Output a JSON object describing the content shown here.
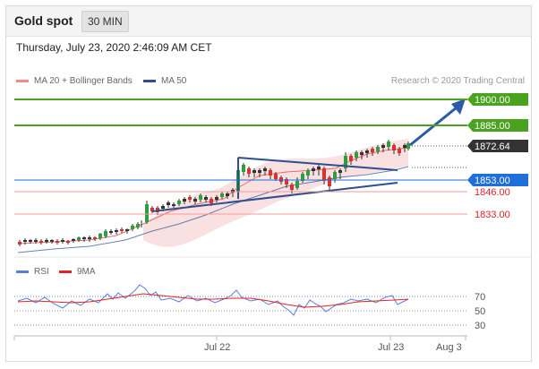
{
  "header": {
    "title": "Gold spot",
    "timeframe": "30 MIN"
  },
  "datetime": "Thursday, July 23, 2020 2:46:09 AM CET",
  "legend": {
    "ma20": {
      "label": "MA 20 + Bollinger Bands",
      "color": "#f28b8b"
    },
    "ma50": {
      "label": "MA 50",
      "color": "#2c4f8f"
    }
  },
  "credit": "Research © 2020 Trading Central",
  "levels": {
    "r2": {
      "label": "1900.00",
      "color": "#4aa31f"
    },
    "r1": {
      "label": "1885.00",
      "color": "#4aa31f"
    },
    "last": {
      "label": "1872.64",
      "color": "#333333"
    },
    "pivot": {
      "label": "1853.00",
      "color": "#1e6fd9"
    },
    "s1": {
      "label": "1846.00",
      "color": "#e02424"
    },
    "s2": {
      "label": "1833.00",
      "color": "#e02424"
    }
  },
  "rsi_legend": {
    "rsi": {
      "label": "RSI",
      "color": "#5b7fd6"
    },
    "ma": {
      "label": "9MA",
      "color": "#e02424"
    }
  },
  "rsi_ticks": [
    "70",
    "50",
    "30"
  ],
  "x_labels": [
    "Jul 22",
    "Jul 23",
    "Aug 3"
  ],
  "chart_data": {
    "type": "candlestick",
    "price_levels": [
      1900.0,
      1885.0,
      1872.64,
      1853.0,
      1846.0,
      1833.0
    ],
    "rsi_levels": [
      70,
      50,
      30
    ],
    "x_ticks": [
      "Jul 22",
      "Jul 23",
      "Aug 3"
    ]
  }
}
